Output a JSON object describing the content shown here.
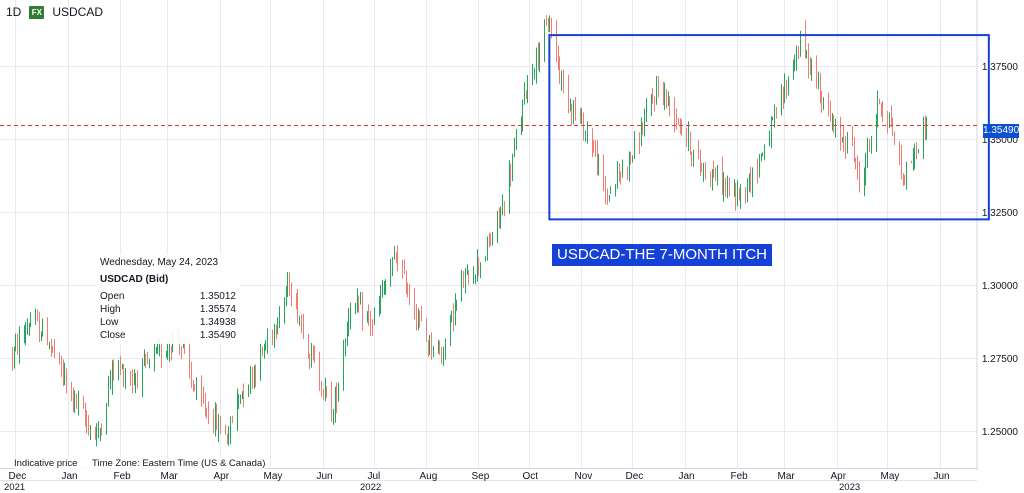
{
  "toolbar": {
    "timeframe": "1D",
    "fx_badge": "FX",
    "symbol": "USDCAD"
  },
  "tooltip": {
    "date": "Wednesday, May 24, 2023",
    "title": "USDCAD (Bid)",
    "rows": [
      {
        "label": "Open",
        "value": "1.35012"
      },
      {
        "label": "High",
        "value": "1.35574"
      },
      {
        "label": "Low",
        "value": "1.34938"
      },
      {
        "label": "Close",
        "value": "1.35490"
      }
    ]
  },
  "footnote": {
    "indicative": "Indicative price",
    "timezone": "Time Zone: Eastern Time (US & Canada)"
  },
  "annotation": {
    "label": "USDCAD-THE 7-MONTH ITCH"
  },
  "last_price": {
    "label": "1.35490",
    "value": 1.3549
  },
  "colors": {
    "up": "#26a65b",
    "down": "#ef7d72",
    "annotation": "#1641d6",
    "price_line": "#e53935",
    "price_tag": "#0c4fd0",
    "grid": "#e6e9ef"
  },
  "chart_data": {
    "type": "bar",
    "style": "ohlc",
    "symbol": "USDCAD",
    "timeframe": "1D",
    "ylim": [
      1.2375,
      1.3975
    ],
    "y_ticks": [
      "1.37500",
      "1.35000",
      "1.32500",
      "1.30000",
      "1.27500",
      "1.25000"
    ],
    "x_ticks": [
      "Dec",
      "Jan",
      "Feb",
      "Mar",
      "Apr",
      "May",
      "Jun",
      "Jul",
      "Aug",
      "Sep",
      "Oct",
      "Nov",
      "Dec",
      "Jan",
      "Feb",
      "Mar",
      "Apr",
      "May",
      "Jun"
    ],
    "year_labels": [
      "2021",
      "2022",
      "2023"
    ],
    "grid": true,
    "box": {
      "x_start": "2022-10-13",
      "x_end": "2023-06-30",
      "y_low": 1.3225,
      "y_high": 1.3855
    },
    "anchors": [
      {
        "date": "2021-11-29",
        "close": 1.276
      },
      {
        "date": "2021-12-10",
        "close": 1.288
      },
      {
        "date": "2021-12-20",
        "close": 1.282
      },
      {
        "date": "2021-12-31",
        "close": 1.266
      },
      {
        "date": "2022-01-13",
        "close": 1.252
      },
      {
        "date": "2022-01-19",
        "close": 1.248
      },
      {
        "date": "2022-01-28",
        "close": 1.273
      },
      {
        "date": "2022-02-08",
        "close": 1.268
      },
      {
        "date": "2022-02-18",
        "close": 1.273
      },
      {
        "date": "2022-03-07",
        "close": 1.283
      },
      {
        "date": "2022-03-18",
        "close": 1.262
      },
      {
        "date": "2022-04-05",
        "close": 1.248
      },
      {
        "date": "2022-04-12",
        "close": 1.262
      },
      {
        "date": "2022-04-22",
        "close": 1.272
      },
      {
        "date": "2022-05-02",
        "close": 1.285
      },
      {
        "date": "2022-05-12",
        "close": 1.3
      },
      {
        "date": "2022-05-26",
        "close": 1.274
      },
      {
        "date": "2022-06-07",
        "close": 1.256
      },
      {
        "date": "2022-06-17",
        "close": 1.294
      },
      {
        "date": "2022-06-30",
        "close": 1.287
      },
      {
        "date": "2022-07-14",
        "close": 1.31
      },
      {
        "date": "2022-08-01",
        "close": 1.281
      },
      {
        "date": "2022-08-10",
        "close": 1.277
      },
      {
        "date": "2022-08-22",
        "close": 1.3
      },
      {
        "date": "2022-09-06",
        "close": 1.312
      },
      {
        "date": "2022-09-16",
        "close": 1.328
      },
      {
        "date": "2022-09-30",
        "close": 1.37
      },
      {
        "date": "2022-10-13",
        "close": 1.39
      },
      {
        "date": "2022-10-21",
        "close": 1.368
      },
      {
        "date": "2022-10-28",
        "close": 1.359
      },
      {
        "date": "2022-11-07",
        "close": 1.349
      },
      {
        "date": "2022-11-15",
        "close": 1.33
      },
      {
        "date": "2022-12-01",
        "close": 1.345
      },
      {
        "date": "2022-12-16",
        "close": 1.368
      },
      {
        "date": "2022-12-28",
        "close": 1.357
      },
      {
        "date": "2023-01-09",
        "close": 1.341
      },
      {
        "date": "2023-01-18",
        "close": 1.338
      },
      {
        "date": "2023-01-31",
        "close": 1.33
      },
      {
        "date": "2023-02-10",
        "close": 1.337
      },
      {
        "date": "2023-02-24",
        "close": 1.358
      },
      {
        "date": "2023-03-10",
        "close": 1.383
      },
      {
        "date": "2023-03-20",
        "close": 1.37
      },
      {
        "date": "2023-03-31",
        "close": 1.351
      },
      {
        "date": "2023-04-10",
        "close": 1.349
      },
      {
        "date": "2023-04-14",
        "close": 1.333
      },
      {
        "date": "2023-04-26",
        "close": 1.363
      },
      {
        "date": "2023-05-03",
        "close": 1.355
      },
      {
        "date": "2023-05-10",
        "close": 1.336
      },
      {
        "date": "2023-05-15",
        "close": 1.343
      },
      {
        "date": "2023-05-24",
        "close": 1.3549
      }
    ]
  }
}
